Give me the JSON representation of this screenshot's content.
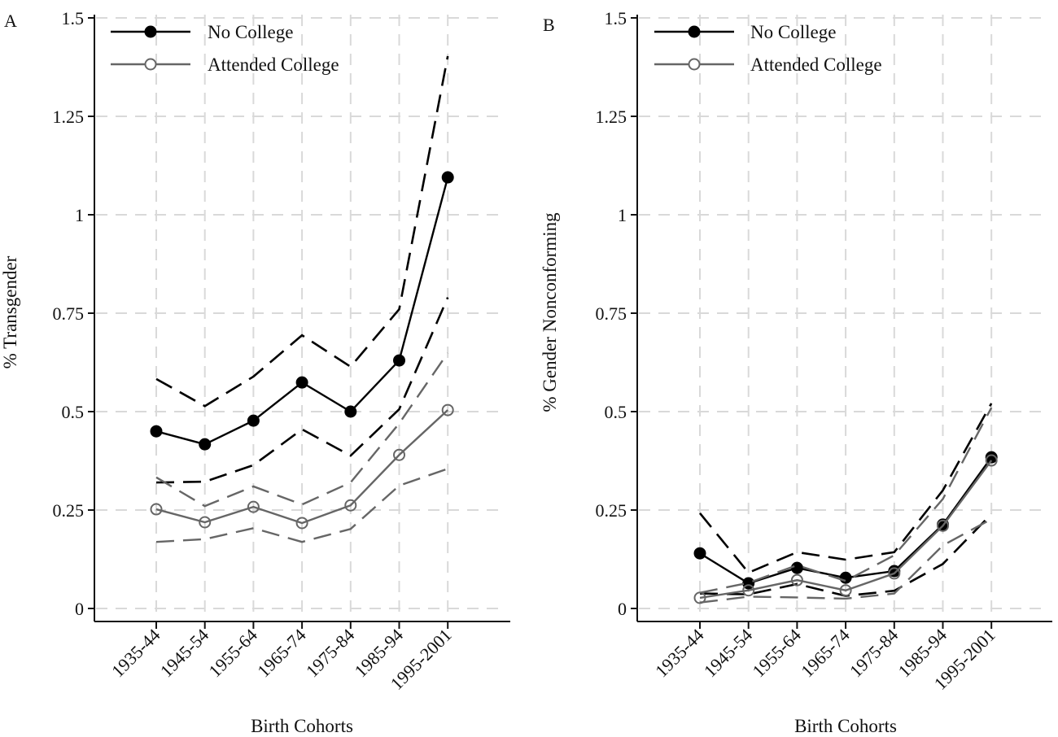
{
  "chart_data": [
    {
      "type": "line",
      "panel_label": "A",
      "title": "",
      "xlabel": "Birth Cohorts",
      "ylabel": "% Transgender",
      "ylim": [
        0,
        1.5
      ],
      "yticks": [
        0,
        0.25,
        0.5,
        0.75,
        1,
        1.25,
        1.5
      ],
      "ytick_labels": [
        "0",
        "0.25",
        "0.5",
        "0.75",
        "1",
        "1.25",
        "1.5"
      ],
      "categories": [
        "1935-44",
        "1945-54",
        "1955-64",
        "1965-74",
        "1975-84",
        "1985-94",
        "1995-2001"
      ],
      "grid": true,
      "legend_position": "top-left",
      "series": [
        {
          "name": "No College",
          "color": "#000000",
          "marker": "filled-circle",
          "values": [
            0.45,
            0.417,
            0.477,
            0.574,
            0.5,
            0.63,
            1.095
          ],
          "ci_upper": [
            0.583,
            0.514,
            0.589,
            0.694,
            0.614,
            0.76,
            1.403
          ],
          "ci_lower": [
            0.32,
            0.322,
            0.364,
            0.455,
            0.388,
            0.506,
            0.79
          ]
        },
        {
          "name": "Attended College",
          "color": "#666666",
          "marker": "hollow-circle",
          "values": [
            0.252,
            0.219,
            0.258,
            0.217,
            0.262,
            0.39,
            0.504
          ],
          "ci_upper": [
            0.333,
            0.26,
            0.31,
            0.264,
            0.32,
            0.47,
            0.649
          ],
          "ci_lower": [
            0.169,
            0.176,
            0.204,
            0.169,
            0.202,
            0.312,
            0.355
          ]
        }
      ]
    },
    {
      "type": "line",
      "panel_label": "B",
      "title": "",
      "xlabel": "Birth Cohorts",
      "ylabel": "% Gender Nonconforming",
      "ylim": [
        0,
        1.5
      ],
      "yticks": [
        0,
        0.25,
        0.5,
        0.75,
        1,
        1.25,
        1.5
      ],
      "ytick_labels": [
        "0",
        "0.25",
        "0.5",
        "0.75",
        "1",
        "1.25",
        "1.5"
      ],
      "categories": [
        "1935-44",
        "1945-54",
        "1955-64",
        "1965-74",
        "1975-84",
        "1985-94",
        "1995-2001"
      ],
      "grid": true,
      "legend_position": "top-left",
      "series": [
        {
          "name": "No College",
          "color": "#000000",
          "marker": "filled-circle",
          "values": [
            0.14,
            0.064,
            0.103,
            0.078,
            0.095,
            0.213,
            0.384
          ],
          "ci_upper": [
            0.242,
            0.091,
            0.143,
            0.124,
            0.143,
            0.3,
            0.521
          ],
          "ci_lower": [
            0.038,
            0.036,
            0.062,
            0.032,
            0.045,
            0.113,
            0.24
          ]
        },
        {
          "name": "Attended College",
          "color": "#666666",
          "marker": "hollow-circle",
          "values": [
            0.027,
            0.046,
            0.072,
            0.046,
            0.089,
            0.21,
            0.376
          ],
          "ci_upper": [
            0.04,
            0.065,
            0.11,
            0.07,
            0.135,
            0.278,
            0.51
          ],
          "ci_lower": [
            0.015,
            0.03,
            0.028,
            0.025,
            0.038,
            0.16,
            0.227
          ]
        }
      ]
    }
  ]
}
